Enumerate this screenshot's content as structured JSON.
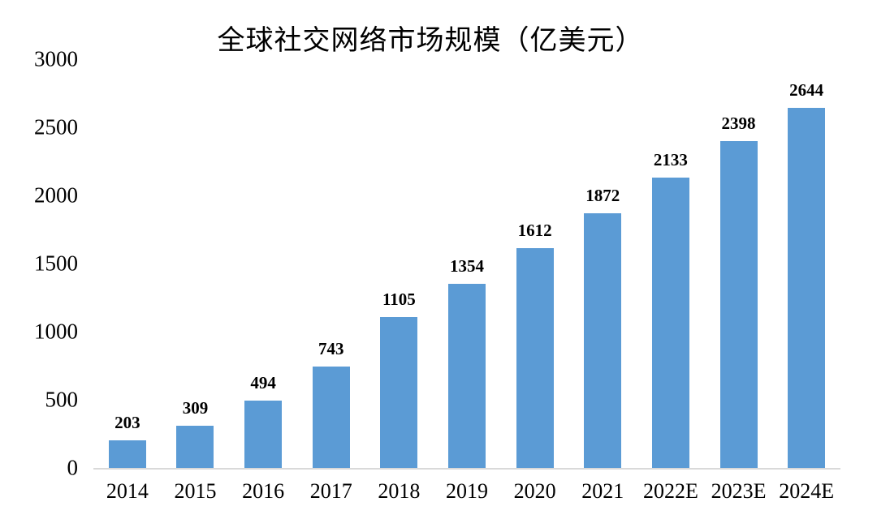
{
  "chart_data": {
    "type": "bar",
    "title": "全球社交网络市场规模（亿美元）",
    "categories": [
      "2014",
      "2015",
      "2016",
      "2017",
      "2018",
      "2019",
      "2020",
      "2021",
      "2022E",
      "2023E",
      "2024E"
    ],
    "values": [
      203,
      309,
      494,
      743,
      1105,
      1354,
      1612,
      1872,
      2133,
      2398,
      2644
    ],
    "xlabel": "",
    "ylabel": "",
    "ylim": [
      0,
      3000
    ],
    "yticks": [
      0,
      500,
      1000,
      1500,
      2000,
      2500,
      3000
    ],
    "grid": false,
    "legend_position": "none",
    "bar_color": "#5b9bd5",
    "axis_line_color": "#d9d9d9",
    "text_color": "#000000"
  }
}
